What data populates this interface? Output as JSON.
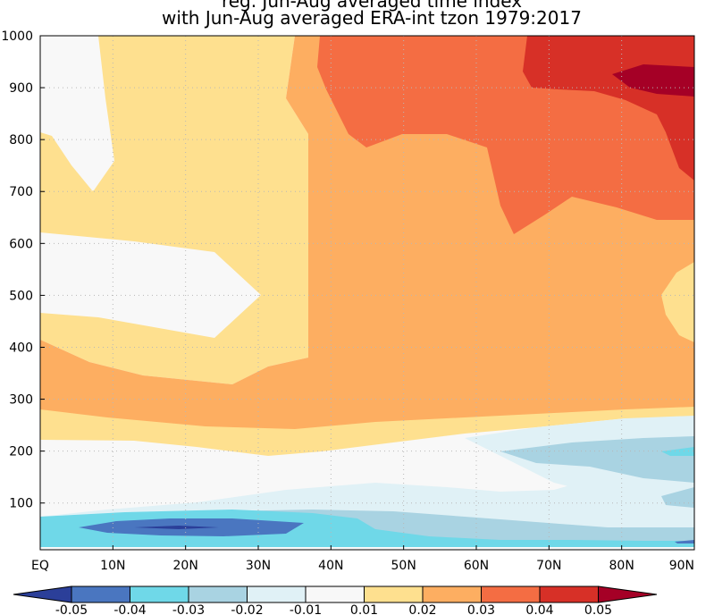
{
  "chart_data": {
    "type": "heatmap",
    "title_line1": "reg. Jun-Aug averaged time index",
    "title_line2": "with Jun-Aug averaged ERA-int tzon 1979:2017",
    "xlabel": "",
    "ylabel": "",
    "x_ticks": [
      "EQ",
      "10N",
      "20N",
      "30N",
      "40N",
      "50N",
      "60N",
      "70N",
      "80N",
      "90N"
    ],
    "x_values": [
      0,
      10,
      20,
      30,
      40,
      50,
      60,
      70,
      80,
      90
    ],
    "xlim": [
      0,
      90
    ],
    "y_ticks": [
      "1000",
      "900",
      "800",
      "700",
      "600",
      "500",
      "400",
      "300",
      "200",
      "100"
    ],
    "y_values": [
      1000,
      900,
      800,
      700,
      600,
      500,
      400,
      300,
      200,
      100
    ],
    "ylim": [
      1000,
      10
    ],
    "grid": "dotted",
    "colorbar": {
      "orientation": "horizontal",
      "labels": [
        "-0.05",
        "-0.04",
        "-0.03",
        "-0.02",
        "-0.01",
        "0.01",
        "0.02",
        "0.03",
        "0.04",
        "0.05"
      ],
      "colors": [
        "#2b3f99",
        "#4a76c0",
        "#6fd8e8",
        "#a9d3e2",
        "#e0f1f6",
        "#f8f8f8",
        "#fee08f",
        "#fdae61",
        "#f46d43",
        "#d73027",
        "#a50026"
      ]
    },
    "contour_fields": [
      {
        "level": "0.01 to 0.02",
        "region": "EQ-35N, 1000-700 hPa and 20-70N, 300-200 hPa"
      },
      {
        "level": "0.02 to 0.03",
        "region": "30N-90N, 1000-300 hPa"
      },
      {
        "level": "0.03 to 0.04",
        "region": "40N-90N, 1000-650 hPa"
      },
      {
        "level": "0.04 to 0.05",
        "region": "65N-90N, 1000-700 hPa"
      },
      {
        "level": "above 0.05",
        "region": "around 85N, 920 hPa"
      },
      {
        "level": "-0.01 to 0.01",
        "region": "EQ-30N, 900-450 hPa and 0-90N, 200-100 hPa"
      },
      {
        "level": "-0.02 to -0.01",
        "region": "60N-90N, 250-100 hPa"
      },
      {
        "level": "-0.04 to -0.03",
        "region": "0-50N, 80-30 hPa"
      },
      {
        "level": "below -0.04",
        "region": "around 20N, 50 hPa"
      }
    ]
  }
}
